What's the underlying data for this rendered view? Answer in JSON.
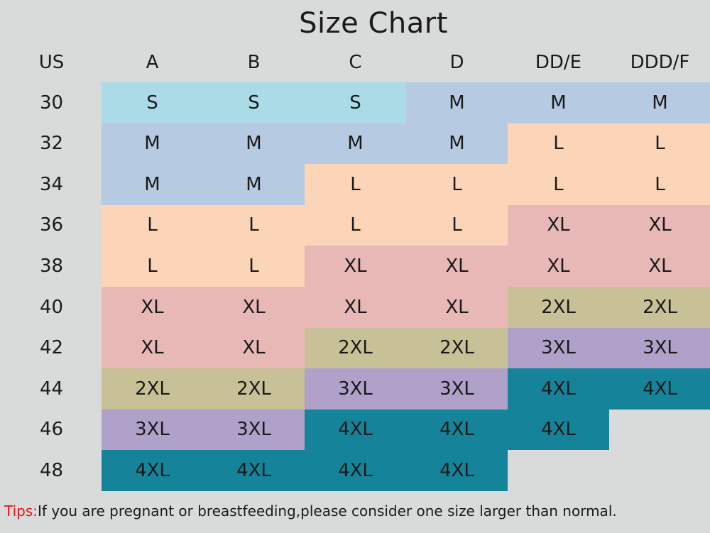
{
  "chart_data": {
    "type": "table",
    "title": "Size Chart",
    "row_header": "US",
    "columns": [
      "A",
      "B",
      "C",
      "D",
      "DD/E",
      "DDD/F"
    ],
    "rows": [
      {
        "band": "30",
        "sizes": [
          "S",
          "S",
          "S",
          "M",
          "M",
          "M"
        ]
      },
      {
        "band": "32",
        "sizes": [
          "M",
          "M",
          "M",
          "M",
          "L",
          "L"
        ]
      },
      {
        "band": "34",
        "sizes": [
          "M",
          "M",
          "L",
          "L",
          "L",
          "L"
        ]
      },
      {
        "band": "36",
        "sizes": [
          "L",
          "L",
          "L",
          "L",
          "XL",
          "XL"
        ]
      },
      {
        "band": "38",
        "sizes": [
          "L",
          "L",
          "XL",
          "XL",
          "XL",
          "XL"
        ]
      },
      {
        "band": "40",
        "sizes": [
          "XL",
          "XL",
          "XL",
          "XL",
          "2XL",
          "2XL"
        ]
      },
      {
        "band": "42",
        "sizes": [
          "XL",
          "XL",
          "2XL",
          "2XL",
          "3XL",
          "3XL"
        ]
      },
      {
        "band": "44",
        "sizes": [
          "2XL",
          "2XL",
          "3XL",
          "3XL",
          "4XL",
          "4XL"
        ]
      },
      {
        "band": "46",
        "sizes": [
          "3XL",
          "3XL",
          "4XL",
          "4XL",
          "4XL",
          ""
        ]
      },
      {
        "band": "48",
        "sizes": [
          "4XL",
          "4XL",
          "4XL",
          "4XL",
          "",
          ""
        ]
      }
    ],
    "size_colors": {
      "S": "#aadbe6",
      "M": "#b6cae2",
      "L": "#fcd5b8",
      "XL": "#e7b8b6",
      "2XL": "#c8c198",
      "3XL": "#b0a1ca",
      "4XL": "#15839a"
    }
  },
  "tips": {
    "tag": "Tips:",
    "text": "If you are pregnant or breastfeeding,please consider one size larger than normal."
  }
}
